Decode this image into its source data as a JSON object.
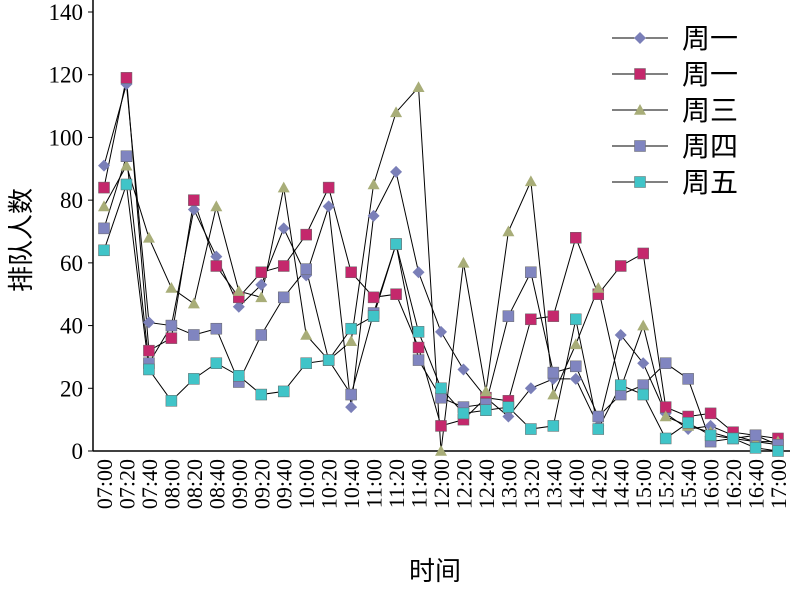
{
  "chart_data": {
    "type": "line",
    "x_label": "时间",
    "y_label": "排队人数",
    "categories": [
      "07:00",
      "07:20",
      "07:40",
      "08:00",
      "08:20",
      "08:40",
      "09:00",
      "09:20",
      "09:40",
      "10:00",
      "10:20",
      "10:40",
      "11:00",
      "11:20",
      "11:40",
      "12:00",
      "12:20",
      "12:40",
      "13:00",
      "13:20",
      "13:40",
      "14:00",
      "14:20",
      "14:40",
      "15:00",
      "15:20",
      "15:40",
      "16:00",
      "16:20",
      "16:40",
      "17:00"
    ],
    "ylim": [
      0,
      140
    ],
    "yticks": [
      0,
      20,
      40,
      60,
      80,
      100,
      120,
      140
    ],
    "legend": "upper right",
    "line_color": "#000000",
    "series": [
      {
        "name": "周一",
        "color": "#7a7fb8",
        "marker": "diamond",
        "values": [
          91,
          117,
          41,
          40,
          77,
          62,
          46,
          53,
          71,
          56,
          78,
          14,
          75,
          89,
          57,
          38,
          26,
          17,
          11,
          20,
          23,
          23,
          8,
          37,
          28,
          12,
          7,
          8,
          5,
          3,
          2
        ]
      },
      {
        "name": "周一",
        "color": "#c4286c",
        "marker": "square",
        "values": [
          84,
          119,
          32,
          36,
          80,
          59,
          49,
          57,
          59,
          69,
          84,
          57,
          49,
          50,
          33,
          8,
          10,
          17,
          16,
          42,
          43,
          68,
          50,
          59,
          63,
          14,
          11,
          12,
          6,
          5,
          4
        ]
      },
      {
        "name": "周三",
        "color": "#a8ad78",
        "marker": "triangle",
        "values": [
          78,
          91,
          68,
          52,
          47,
          78,
          51,
          49,
          84,
          37,
          29,
          35,
          85,
          108,
          116,
          0,
          60,
          19,
          70,
          86,
          18,
          34,
          52,
          20,
          40,
          11,
          8,
          6,
          4,
          3,
          3
        ]
      },
      {
        "name": "周四",
        "color": "#8085c0",
        "marker": "square",
        "values": [
          71,
          94,
          28,
          40,
          37,
          39,
          22,
          37,
          49,
          58,
          29,
          18,
          44,
          66,
          29,
          17,
          14,
          15,
          43,
          57,
          25,
          27,
          11,
          18,
          21,
          28,
          23,
          3,
          4,
          5,
          2
        ]
      },
      {
        "name": "周五",
        "color": "#40c4c8",
        "marker": "square",
        "values": [
          64,
          85,
          26,
          16,
          23,
          28,
          24,
          18,
          19,
          28,
          29,
          39,
          43,
          66,
          38,
          20,
          12,
          13,
          14,
          7,
          8,
          42,
          7,
          21,
          18,
          4,
          9,
          5,
          4,
          1,
          0
        ]
      }
    ]
  }
}
